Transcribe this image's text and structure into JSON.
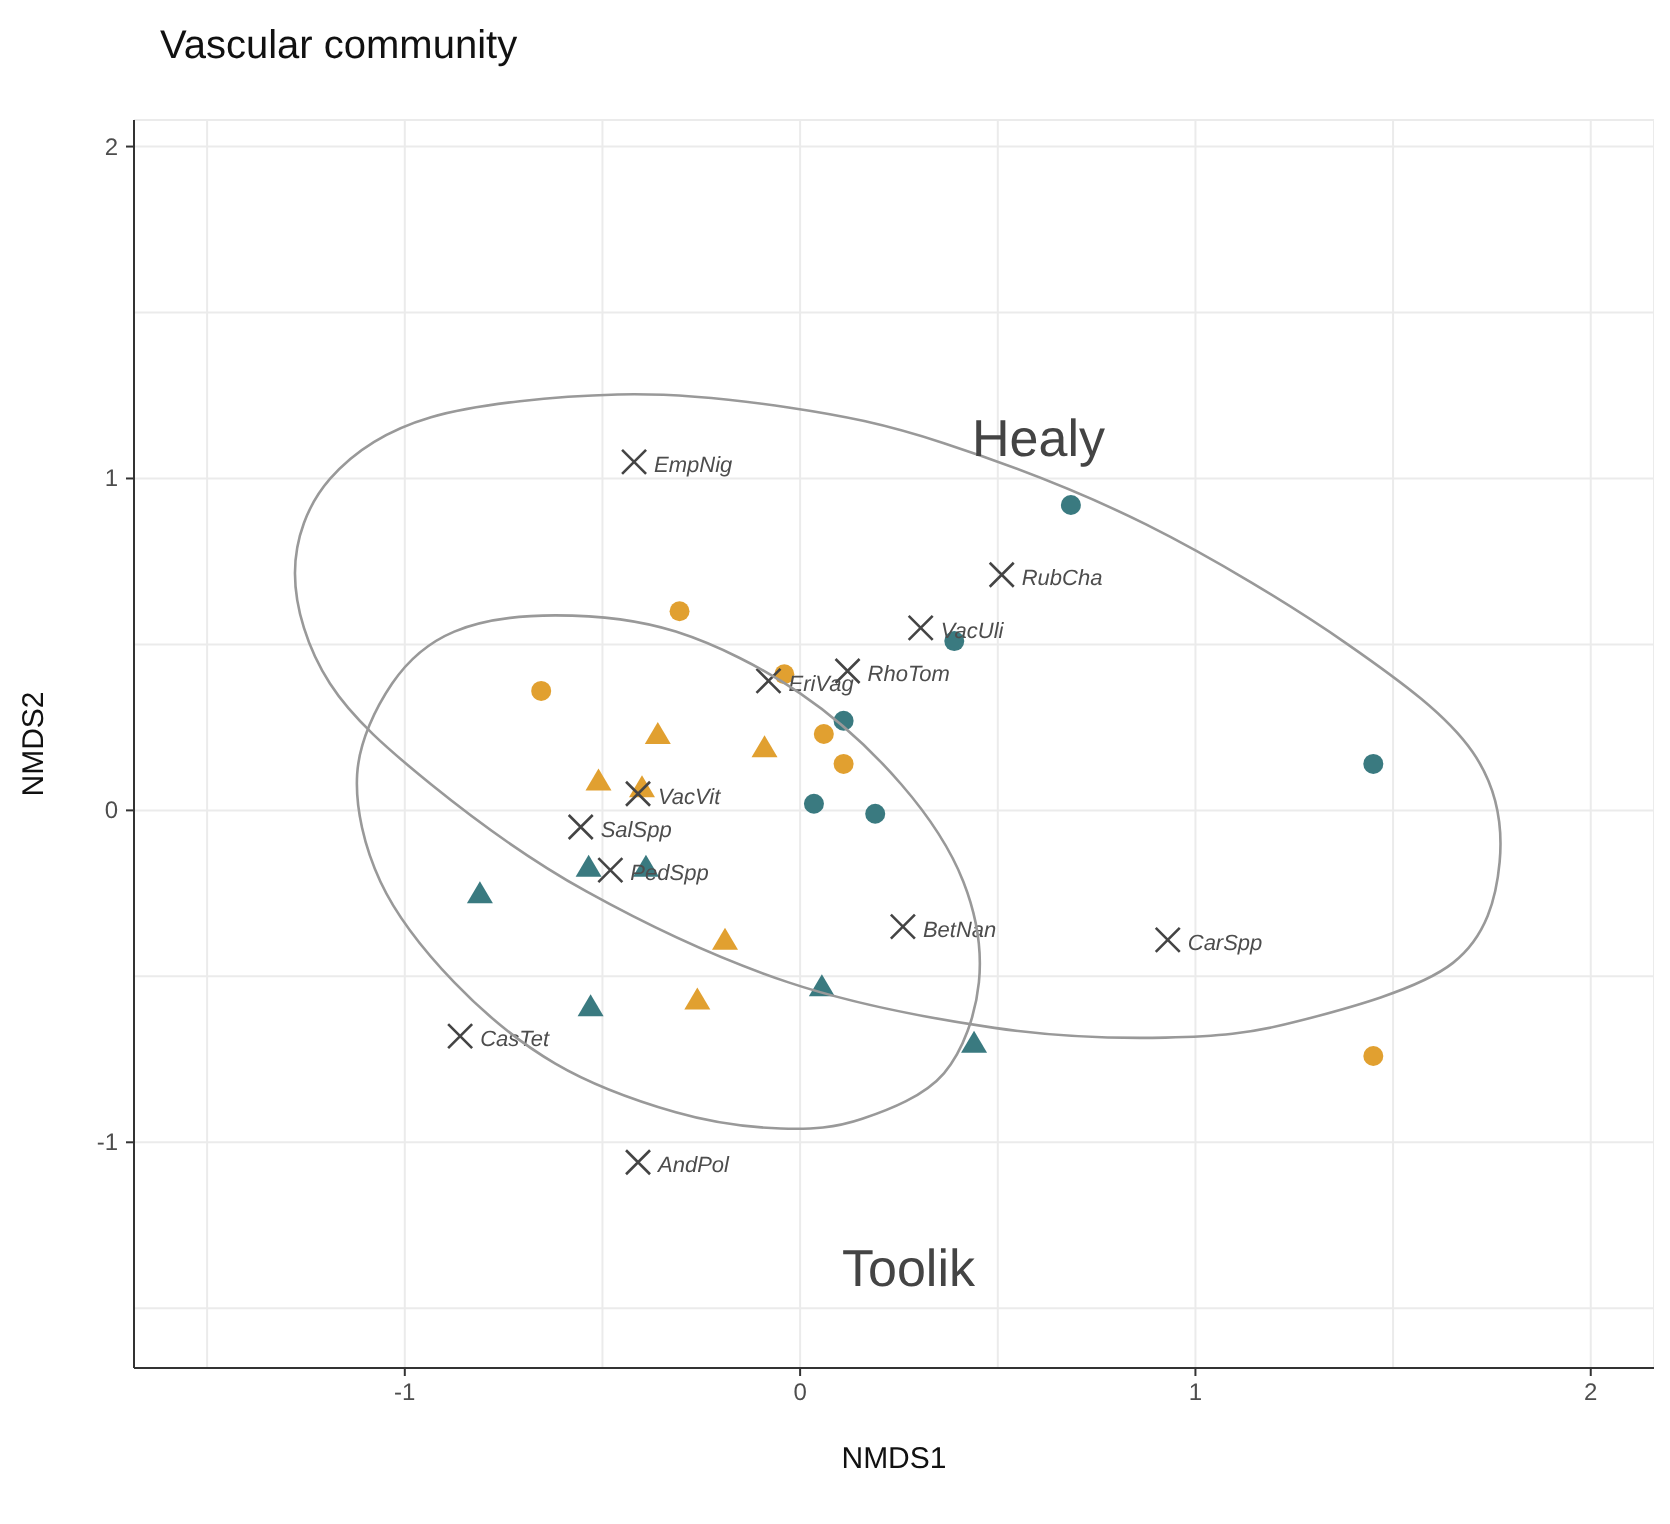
{
  "chart_data": {
    "type": "scatter",
    "title": "Vascular community",
    "xlabel": "NMDS1",
    "ylabel": "NMDS2",
    "xlim": [
      -1.685,
      2.16
    ],
    "ylim": [
      -1.68,
      2.08
    ],
    "xticks": [
      {
        "value": -1.5,
        "label": null
      },
      -1,
      {
        "value": -0.5,
        "label": null
      },
      0,
      {
        "value": 0.5,
        "label": null
      },
      1,
      {
        "value": 1.5,
        "label": null
      },
      2
    ],
    "yticks": [
      {
        "value": -1.5,
        "label": null
      },
      -1,
      {
        "value": -0.5,
        "label": null
      },
      0,
      {
        "value": 0.5,
        "label": null
      },
      1,
      {
        "value": 1.5,
        "label": null
      },
      2
    ],
    "grid": true,
    "legend": false,
    "annotations": [
      "Healy",
      "Toolik"
    ],
    "series": [
      {
        "marker": "circle",
        "color": "#3a7a80",
        "x": [
          0.685,
          0.39,
          0.11,
          0.035,
          0.19,
          1.45
        ],
        "values": [
          0.92,
          0.51,
          0.27,
          0.02,
          -0.01,
          0.14
        ]
      },
      {
        "marker": "circle",
        "color": "#e1a030",
        "x": [
          -0.305,
          -0.655,
          -0.04,
          0.06,
          0.11,
          1.45
        ],
        "values": [
          0.6,
          0.36,
          0.41,
          0.23,
          0.14,
          -0.74
        ]
      },
      {
        "marker": "triangle",
        "color": "#3a7a80",
        "x": [
          -0.81,
          -0.53,
          -0.535,
          -0.39,
          0.055,
          0.44
        ],
        "values": [
          -0.25,
          -0.59,
          -0.17,
          -0.17,
          -0.53,
          -0.7
        ]
      },
      {
        "marker": "triangle",
        "color": "#e1a030",
        "x": [
          -0.51,
          -0.4,
          -0.36,
          -0.09,
          -0.19,
          -0.26
        ],
        "values": [
          0.09,
          0.07,
          0.23,
          0.19,
          -0.39,
          -0.57
        ]
      },
      {
        "marker": "cross",
        "color": "#444444",
        "x": [
          -0.42,
          0.51,
          0.305,
          0.12,
          -0.08,
          -0.41,
          -0.555,
          -0.48,
          0.26,
          0.93,
          -0.86,
          -0.41
        ],
        "values": [
          1.05,
          0.71,
          0.55,
          0.42,
          0.39,
          0.05,
          -0.05,
          -0.18,
          -0.35,
          -0.39,
          -0.68,
          -1.06
        ],
        "value_labels": [
          "EmpNig",
          "RubCha",
          "VacUli",
          "RhoTom",
          "EriVag",
          "VacVit",
          "SalSpp",
          "PedSpp",
          "BetNan",
          "CarSpp",
          "CasTet",
          "AndPol"
        ]
      }
    ]
  }
}
